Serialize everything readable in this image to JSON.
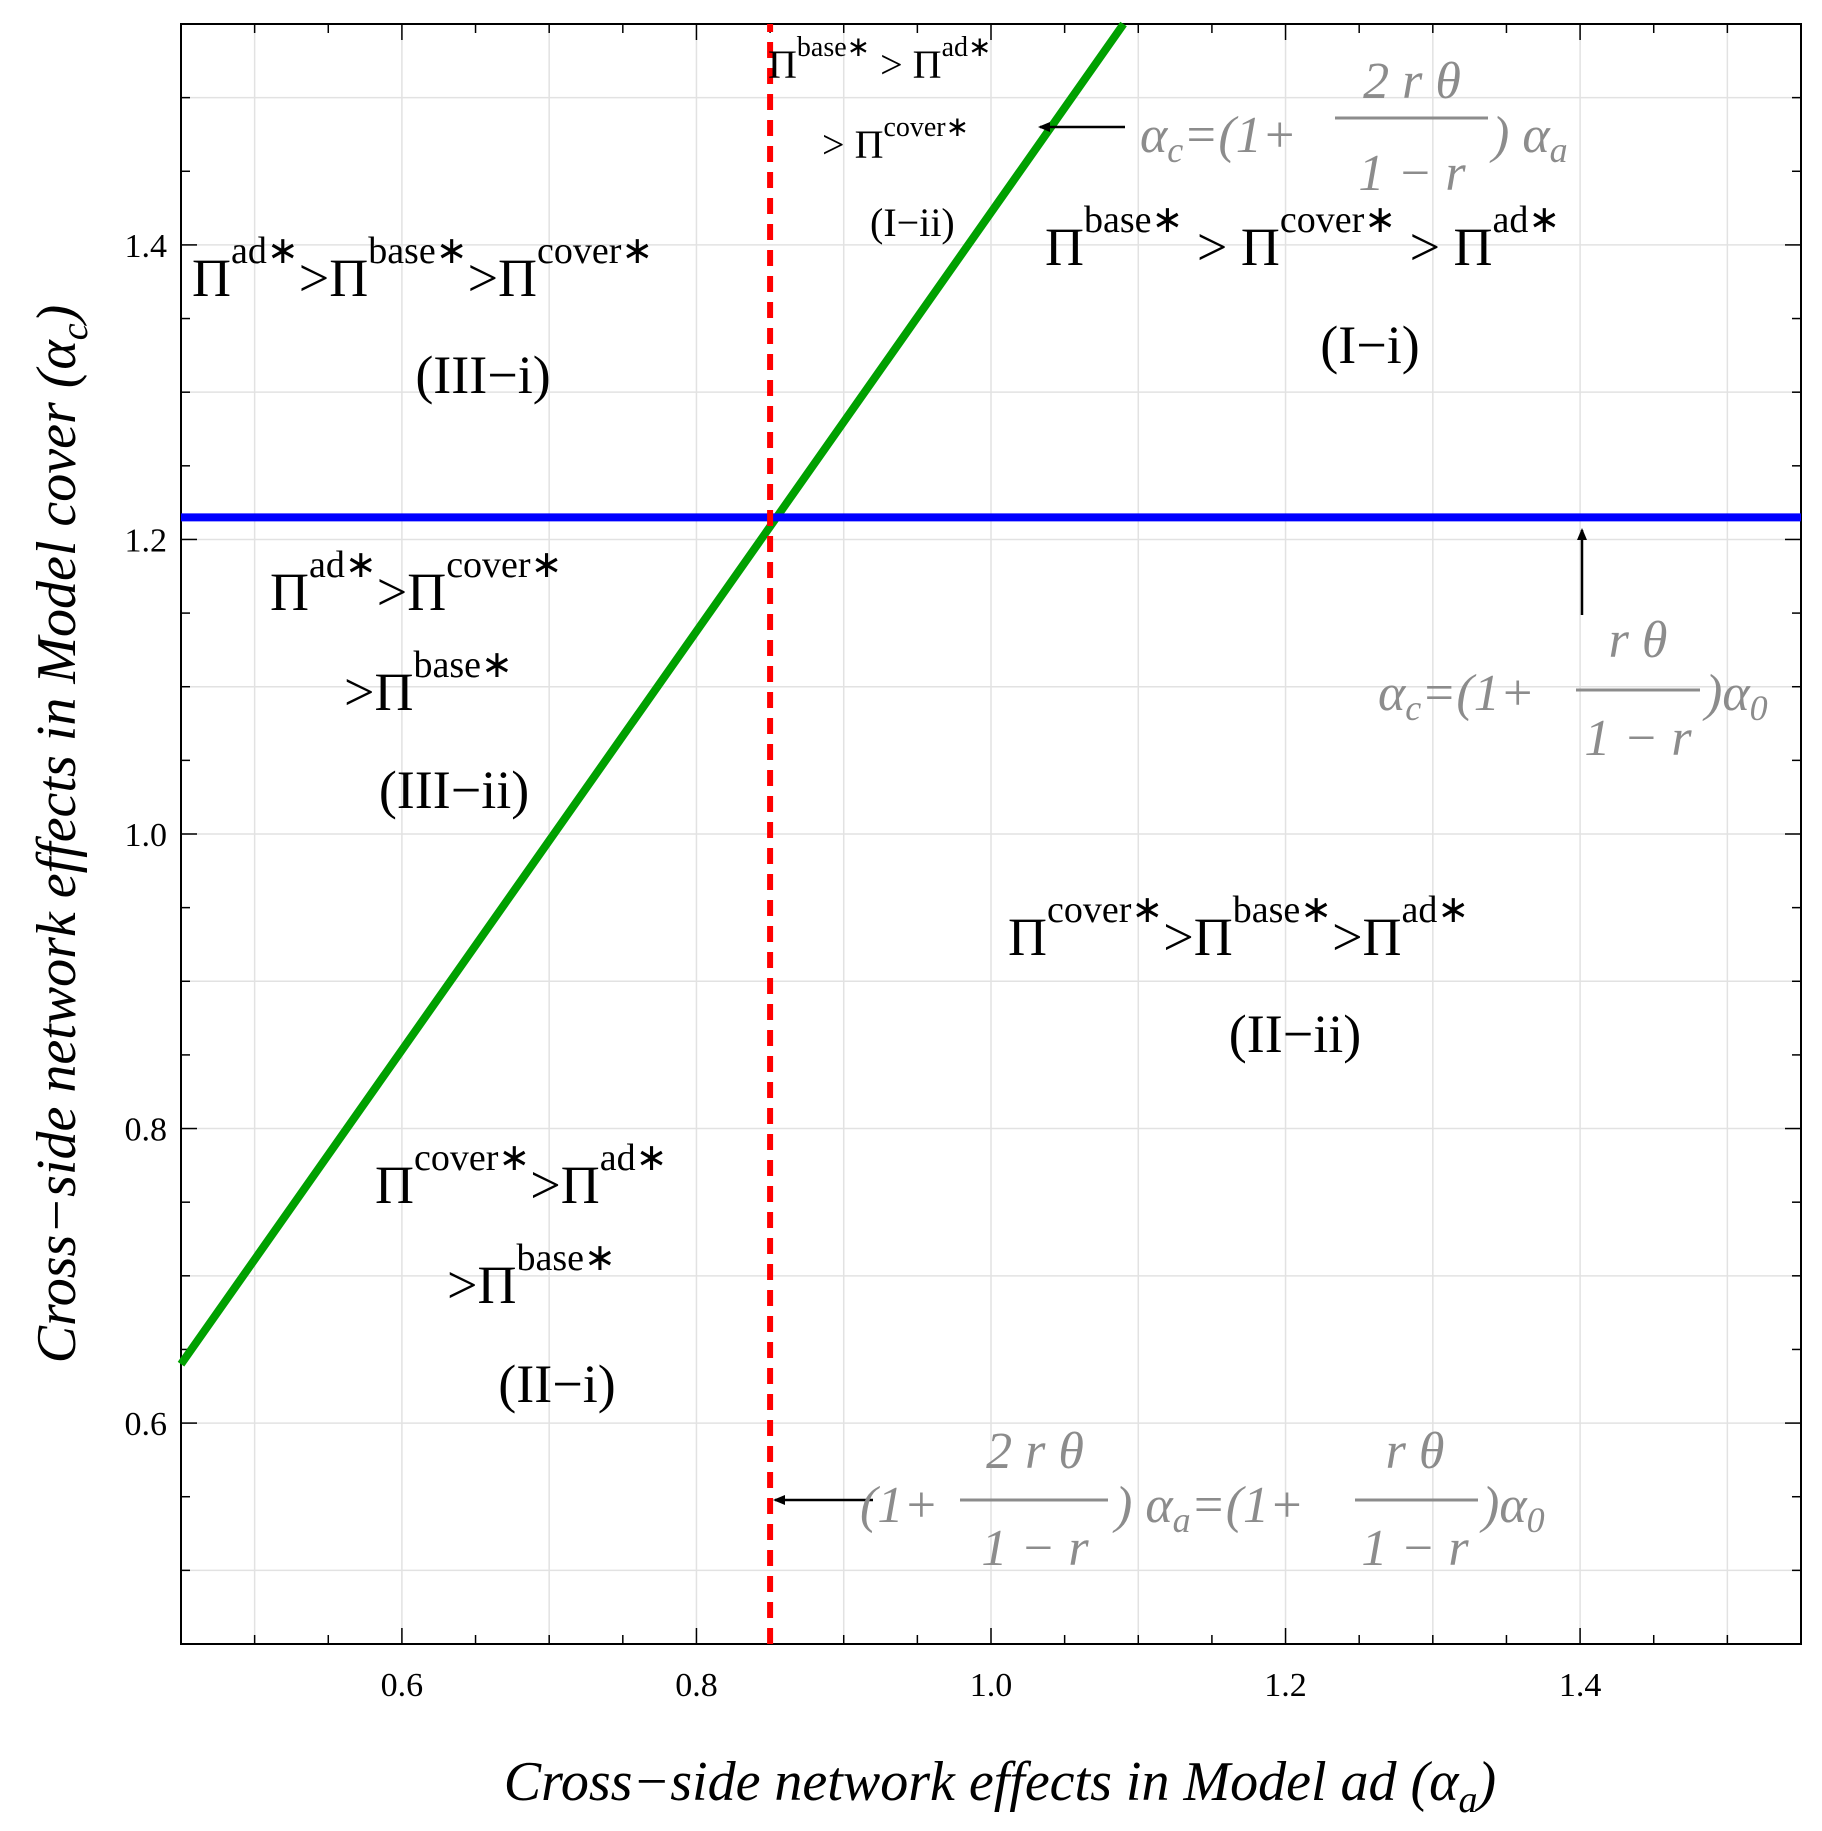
{
  "chart_data": {
    "type": "line",
    "title": "",
    "xlabel": "Cross−side network effects in Model ad (α",
    "xlabel_sub": "a",
    "xlabel_close": ")",
    "ylabel": "Cross−side network effects in Model cover (α",
    "ylabel_sub": "c",
    "ylabel_close": ")",
    "xlim": [
      0.45,
      1.55
    ],
    "ylim": [
      0.45,
      1.55
    ],
    "x_ticks": [
      0.6,
      0.8,
      1.0,
      1.2,
      1.4
    ],
    "y_ticks": [
      0.6,
      0.8,
      1.0,
      1.2,
      1.4
    ],
    "x_tick_labels": [
      "0.6",
      "0.8",
      "1.0",
      "1.2",
      "1.4"
    ],
    "y_tick_labels": [
      "0.6",
      "0.8",
      "1.0",
      "1.2",
      "1.4"
    ],
    "grid": true,
    "series": [
      {
        "color": "#00a000",
        "style": "solid",
        "x": [
          0.45,
          1.09
        ],
        "y": [
          0.64,
          1.55
        ]
      },
      {
        "color": "#0000ff",
        "style": "solid",
        "x": [
          0.45,
          1.55
        ],
        "y": [
          1.215,
          1.215
        ]
      },
      {
        "color": "#ff0000",
        "style": "dashed",
        "x": [
          0.85,
          0.85
        ],
        "y": [
          0.45,
          1.55
        ]
      }
    ],
    "region_labels": [
      {
        "id": "I-i",
        "lines": [
          "Πbase* > Πcover* > Πad*",
          "(I−i)"
        ],
        "order": [
          "base",
          "cover",
          "ad"
        ],
        "label": "(I−i)"
      },
      {
        "id": "I-ii",
        "order": [
          "base",
          "ad",
          "cover"
        ],
        "label": "(I−ii)"
      },
      {
        "id": "III-i",
        "order": [
          "ad",
          "base",
          "cover"
        ],
        "label": "(III−i)"
      },
      {
        "id": "III-ii",
        "order": [
          "ad",
          "cover",
          "base"
        ],
        "label": "(III−ii)"
      },
      {
        "id": "II-ii",
        "order": [
          "cover",
          "base",
          "ad"
        ],
        "label": "(II−ii)"
      },
      {
        "id": "II-i",
        "order": [
          "cover",
          "ad",
          "base"
        ],
        "label": "(II−i)"
      }
    ],
    "annotations": [
      {
        "id": "green-line",
        "text": "αc=(1+ 2 r θ / 1 − r ) αa"
      },
      {
        "id": "blue-line",
        "text": "αc=(1+ r θ / 1 − r )α0"
      },
      {
        "id": "red-line",
        "text": "(1+ 2 r θ / 1 − r ) αa=(1+ r θ / 1 − r )α0"
      }
    ]
  },
  "labels": {
    "pi": "Π",
    "sup_base": "base∗",
    "sup_cover": "cover∗",
    "sup_ad": "ad∗",
    "gt": ">",
    "gt_spaced": " > ",
    "region_I_i": "(I−i)",
    "region_I_ii": "(I−ii)",
    "region_III_i": "(III−i)",
    "region_III_ii": "(III−ii)",
    "region_II_ii": "(II−ii)",
    "region_II_i": "(II−i)",
    "alpha": "α",
    "sub_c": "c",
    "sub_a": "a",
    "sub_0": "0",
    "eq_open": "=(1+",
    "open_paren": "(1+",
    "close_paren": ")",
    "eq_open2": "=(1+",
    "num_2rtheta": "2  r  θ",
    "num_rtheta": "r  θ",
    "den_1mr": "1 − r"
  }
}
